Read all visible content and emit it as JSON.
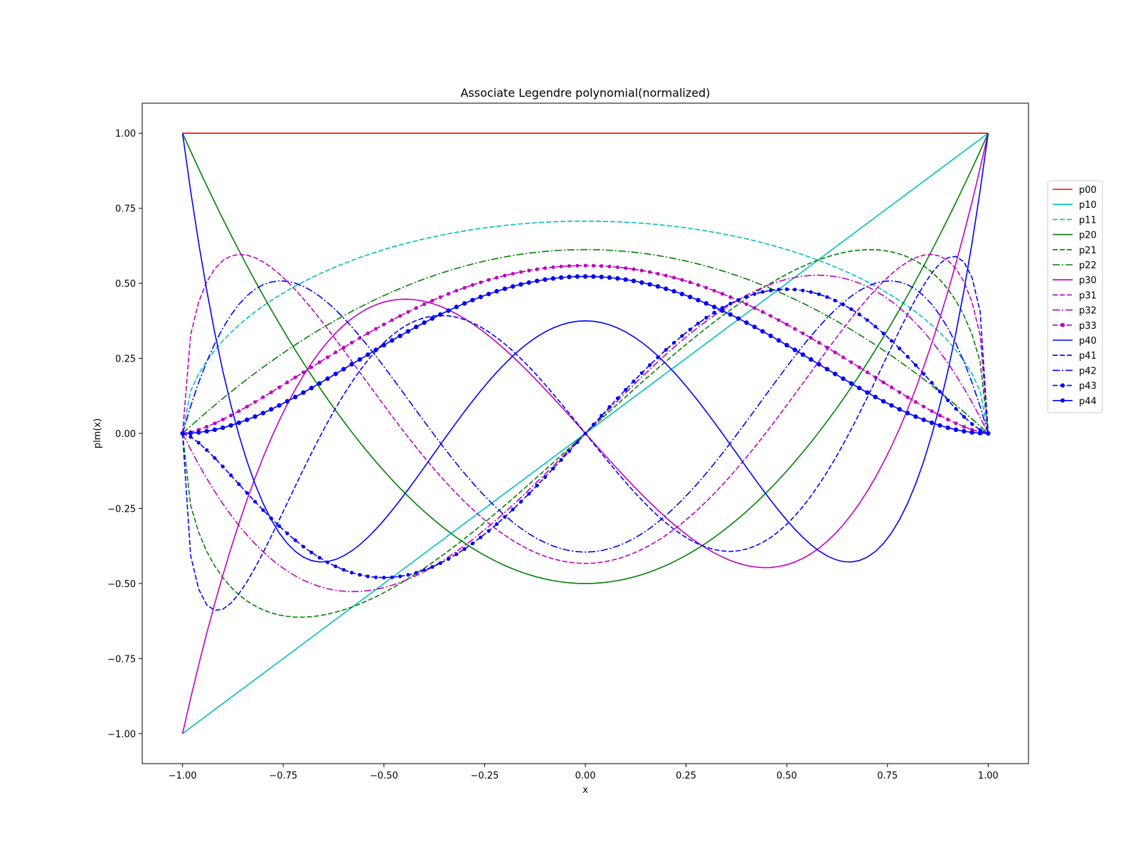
{
  "chart_data": {
    "type": "line",
    "title": "Associate Legendre polynomial(normalized)",
    "xlabel": "x",
    "ylabel": "plm(x)",
    "xlim": [
      -1.1,
      1.1
    ],
    "ylim": [
      -1.1,
      1.1
    ],
    "xticks": [
      -1.0,
      -0.75,
      -0.5,
      -0.25,
      0.0,
      0.25,
      0.5,
      0.75,
      1.0
    ],
    "yticks": [
      -1.0,
      -0.75,
      -0.5,
      -0.25,
      0.0,
      0.25,
      0.5,
      0.75,
      1.0
    ],
    "xtick_labels": [
      "−1.00",
      "−0.75",
      "−0.50",
      "−0.25",
      "0.00",
      "0.25",
      "0.50",
      "0.75",
      "1.00"
    ],
    "ytick_labels": [
      "−1.00",
      "−0.75",
      "−0.50",
      "−0.25",
      "0.00",
      "0.25",
      "0.50",
      "0.75",
      "1.00"
    ],
    "grid": false,
    "legend_position": "right",
    "series": [
      {
        "name": "p00",
        "l": 0,
        "m": 0,
        "color": "#ff0000",
        "style": "solid",
        "marker": "none"
      },
      {
        "name": "p10",
        "l": 1,
        "m": 0,
        "color": "#00bfbf",
        "style": "solid",
        "marker": "none"
      },
      {
        "name": "p11",
        "l": 1,
        "m": 1,
        "color": "#00bfbf",
        "style": "dashed",
        "marker": "none"
      },
      {
        "name": "p20",
        "l": 2,
        "m": 0,
        "color": "#008000",
        "style": "solid",
        "marker": "none"
      },
      {
        "name": "p21",
        "l": 2,
        "m": 1,
        "color": "#008000",
        "style": "dashed",
        "marker": "none"
      },
      {
        "name": "p22",
        "l": 2,
        "m": 2,
        "color": "#008000",
        "style": "dashdot",
        "marker": "none"
      },
      {
        "name": "p30",
        "l": 3,
        "m": 0,
        "color": "#bf00bf",
        "style": "solid",
        "marker": "none"
      },
      {
        "name": "p31",
        "l": 3,
        "m": 1,
        "color": "#bf00bf",
        "style": "dashed",
        "marker": "none"
      },
      {
        "name": "p32",
        "l": 3,
        "m": 2,
        "color": "#bf00bf",
        "style": "dashdot",
        "marker": "none"
      },
      {
        "name": "p33",
        "l": 3,
        "m": 3,
        "color": "#bf00bf",
        "style": "dashed",
        "marker": "dot"
      },
      {
        "name": "p40",
        "l": 4,
        "m": 0,
        "color": "#0000ff",
        "style": "solid",
        "marker": "none"
      },
      {
        "name": "p41",
        "l": 4,
        "m": 1,
        "color": "#0000ff",
        "style": "dashed",
        "marker": "none"
      },
      {
        "name": "p42",
        "l": 4,
        "m": 2,
        "color": "#0000ff",
        "style": "dashdot",
        "marker": "none"
      },
      {
        "name": "p43",
        "l": 4,
        "m": 3,
        "color": "#0000ff",
        "style": "dashed",
        "marker": "dot"
      },
      {
        "name": "p44",
        "l": 4,
        "m": 4,
        "color": "#0000ff",
        "style": "solid",
        "marker": "star"
      }
    ]
  }
}
